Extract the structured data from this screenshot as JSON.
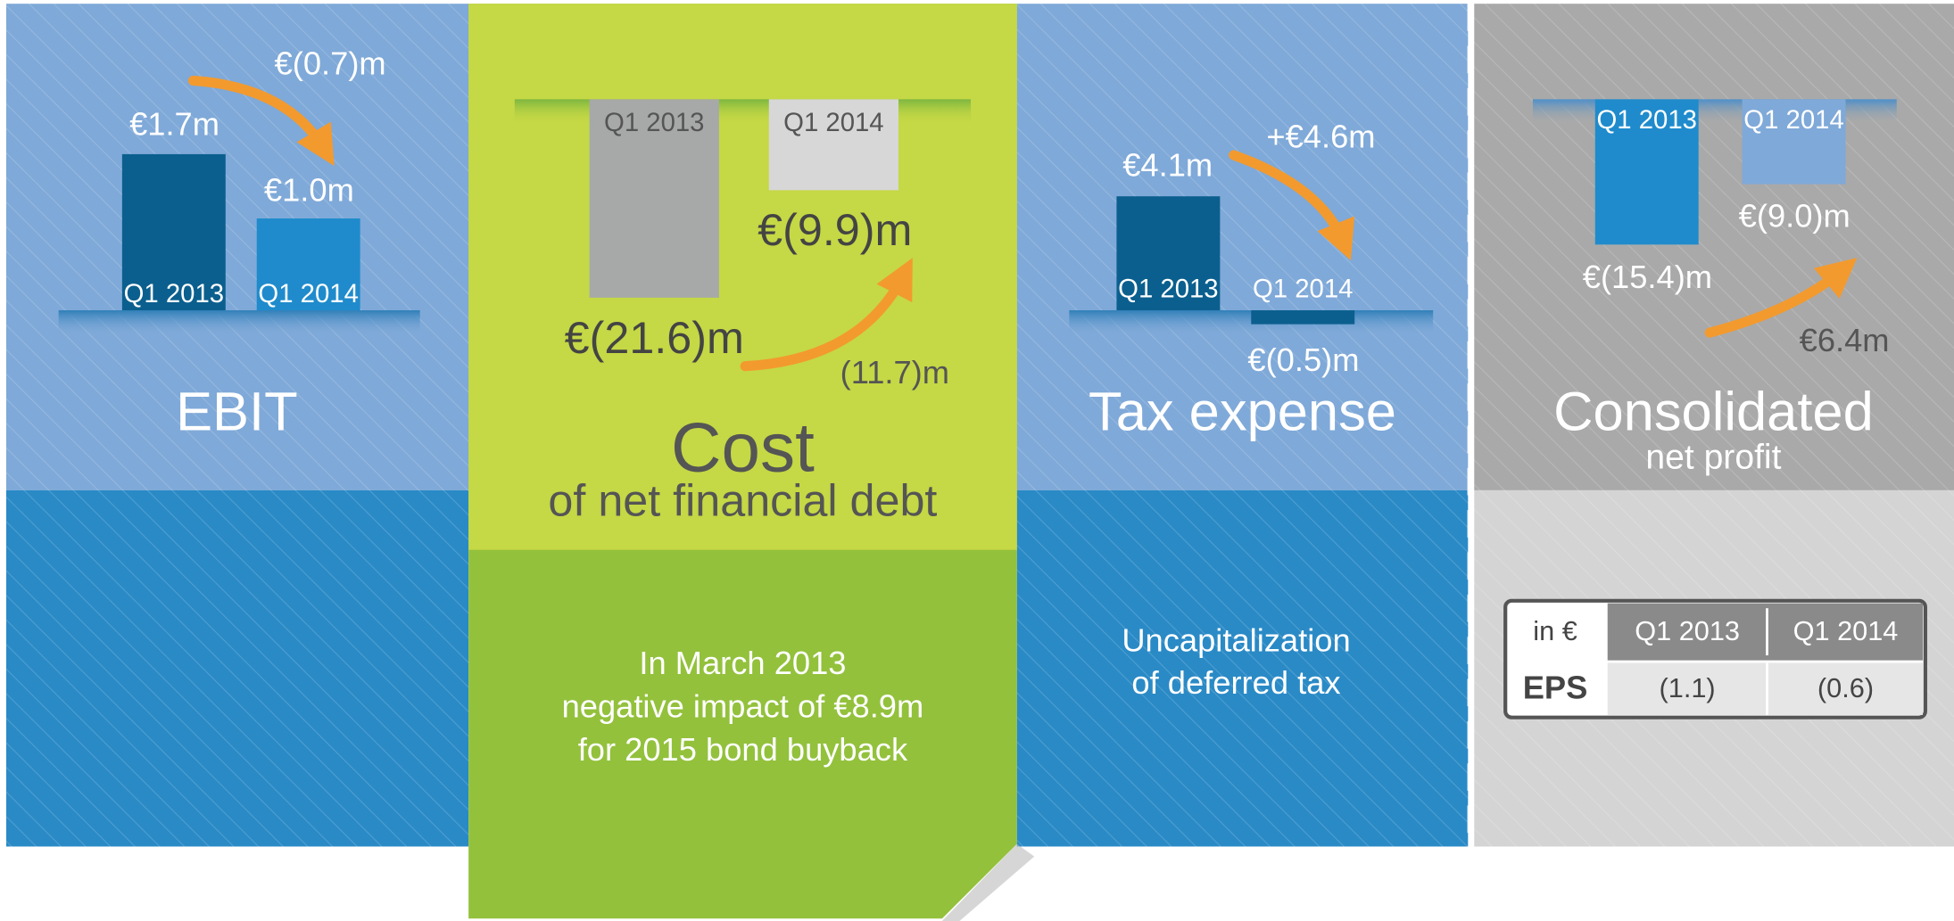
{
  "chart_data": [
    {
      "type": "bar",
      "title": "EBIT",
      "categories": [
        "Q1 2013",
        "Q1 2014"
      ],
      "values": [
        1.7,
        1.0
      ],
      "value_labels": [
        "€1.7m",
        "€1.0m"
      ],
      "annotation": "€(0.7)m"
    },
    {
      "type": "bar",
      "title": "Cost",
      "subtitle": "of net financial debt",
      "categories": [
        "Q1 2013",
        "Q1 2014"
      ],
      "values": [
        -21.6,
        -9.9
      ],
      "value_labels": [
        "€(21.6)m",
        "€(9.9)m"
      ],
      "annotation": "(11.7)m",
      "note": [
        "In March 2013",
        "negative impact of €8.9m",
        "for 2015 bond buyback"
      ]
    },
    {
      "type": "bar",
      "title": "Tax expense",
      "categories": [
        "Q1 2013",
        "Q1 2014"
      ],
      "values": [
        4.1,
        -0.5
      ],
      "value_labels": [
        "€4.1m",
        "€(0.5)m"
      ],
      "annotation": "+€4.6m",
      "note": [
        "Uncapitalization",
        "of deferred tax"
      ]
    },
    {
      "type": "bar",
      "title": "Consolidated",
      "subtitle": "net profit",
      "categories": [
        "Q1 2013",
        "Q1 2014"
      ],
      "values": [
        -15.4,
        -9.0
      ],
      "value_labels": [
        "€(15.4)m",
        "€(9.0)m"
      ],
      "annotation": "€6.4m"
    }
  ],
  "eps_table": {
    "header": [
      "in €",
      "Q1 2013",
      "Q1 2014"
    ],
    "rows": [
      [
        "EPS",
        "(1.1)",
        "(0.6)"
      ]
    ]
  }
}
